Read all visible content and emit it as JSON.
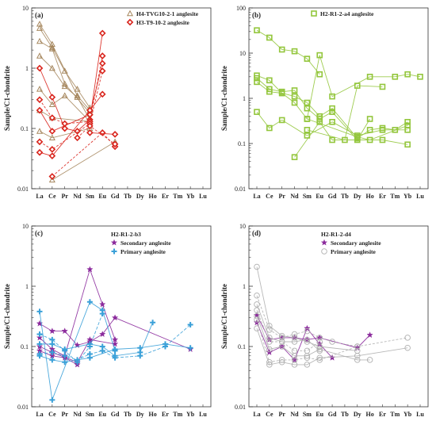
{
  "chart_data": [
    {
      "type": "line",
      "panel_label": "(a)",
      "ylabel": "Sample/C1-chondrite",
      "ylim": [
        0.01,
        10
      ],
      "yscale": "log",
      "y_ticks": [
        "0.01",
        "0.1",
        "1",
        "10"
      ],
      "categories": [
        "La",
        "Ce",
        "Pr",
        "Nd",
        "Sm",
        "Eu",
        "Gd",
        "Tb",
        "Dy",
        "Ho",
        "Er",
        "Tm",
        "Yb",
        "Lu"
      ],
      "legend_title": "",
      "legend": [
        "H4-TVG10-2-1 anglesite",
        "H3-T9-10-2 anglesite"
      ],
      "colors": [
        "#a6875e",
        "#d9251d"
      ],
      "series": [
        {
          "name": "H4-TVG10-2-1 anglesite",
          "marker": "triangle",
          "color": "#a6875e",
          "lines": [
            {
              "La": 5.4,
              "Ce": 2.5,
              "Nd": 0.35,
              "Sm": 0.2
            },
            {
              "La": 4.6,
              "Ce": 2.2,
              "Pr": 0.9,
              "Nd": 0.45,
              "Sm": 0.22
            },
            {
              "La": 2.8,
              "Ce": 2.1,
              "Pr": 0.55,
              "Sm": 0.18
            },
            {
              "La": 1.6,
              "Ce": 1.0,
              "Pr": 0.5,
              "Nd": 0.33,
              "Sm": 0.14
            },
            {
              "La": 0.45,
              "Ce": 0.25,
              "Pr": 0.35,
              "Sm": 0.13
            },
            {
              "La": 0.2,
              "Ce": 0.15,
              "Sm": 0.13
            },
            {
              "La": 0.09,
              "Ce": 0.07,
              "Sm": 0.1
            },
            {
              "Ce": 0.014,
              "Gd": 0.06
            }
          ]
        },
        {
          "name": "H3-T9-10-2 anglesite",
          "marker": "diamond",
          "color": "#d9251d",
          "lines": [
            {
              "La": 1.0,
              "Ce": 0.33,
              "Pr": 0.1,
              "Nd": 0.09,
              "Sm": 0.14,
              "Eu": 3.8
            },
            {
              "La": 0.3,
              "Ce": 0.15,
              "Pr": 0.12,
              "Sm": 0.13,
              "Eu": 1.6
            },
            {
              "La": 0.2,
              "Ce": 0.09,
              "Sm": 0.17,
              "Eu": 1.2
            },
            {
              "La": 0.06,
              "Ce": 0.045,
              "Sm": 0.12,
              "Eu": 0.9
            },
            {
              "La": 0.04,
              "Ce": 0.035,
              "Sm": 0.2,
              "Eu": 0.37
            },
            {
              "Ce": 0.016,
              "Eu": 0.085,
              "Gd": 0.05
            },
            {
              "Sm": 0.085,
              "Gd": 0.08
            },
            {
              "Nd": 0.07,
              "Sm": 0.11,
              "Gd": 0.055
            }
          ]
        }
      ]
    },
    {
      "type": "line",
      "panel_label": "(b)",
      "ylabel": "Sample/C1-chondrite",
      "ylim": [
        0.01,
        100
      ],
      "yscale": "log",
      "y_ticks": [
        "0.01",
        "0.1",
        "1",
        "10",
        "100"
      ],
      "categories": [
        "La",
        "Ce",
        "Pr",
        "Nd",
        "Sm",
        "Eu",
        "Gd",
        "Tb",
        "Dy",
        "Ho",
        "Er",
        "Tm",
        "Yb",
        "Lu"
      ],
      "legend_title": "",
      "legend": [
        "H2-R1-2-a4 anglesite"
      ],
      "colors": [
        "#93c63c"
      ],
      "series": [
        {
          "name": "H2-R1-2-a4 anglesite",
          "marker": "square",
          "color": "#93c63c",
          "lines": [
            {
              "La": 32,
              "Ce": 22,
              "Pr": 12,
              "Nd": 11,
              "Sm": 7.5,
              "Eu": 3.4
            },
            {
              "La": 3.2,
              "Ce": 2.5,
              "Pr": 1.3,
              "Nd": 0.8,
              "Sm": 0.35,
              "Eu": 9,
              "Gd": 1.1,
              "Ho": 3.0,
              "Tm": 3.0,
              "Yb": 3.4,
              "Lu": 3.0
            },
            {
              "La": 2.8,
              "Ce": 1.6,
              "Pr": 1.4,
              "Nd": 1.5,
              "Sm": 0.6,
              "Eu": 0.35,
              "Gd": 0.5,
              "Dy": 0.12,
              "Ho": 0.35
            },
            {
              "La": 2.3,
              "Ce": 1.4,
              "Pr": 1.3,
              "Nd": 1.1,
              "Sm": 0.8,
              "Eu": 0.4,
              "Gd": 0.6,
              "Dy": 0.13,
              "Ho": 0.2,
              "Er": 0.22,
              "Tm": 0.2,
              "Yb": 0.3
            },
            {
              "La": 0.5,
              "Ce": 0.22,
              "Pr": 0.33,
              "Sm": 0.15,
              "Gd": 0.3,
              "Dy": 0.15,
              "Er": 0.2,
              "Yb": 0.2
            },
            {
              "Nd": 0.05,
              "Eu": 0.3,
              "Gd": 0.12,
              "Er": 0.12,
              "Yb": 0.095
            },
            {
              "Sm": 0.35,
              "Dy": 0.14,
              "Ho": 0.12,
              "Yb": 0.25
            },
            {
              "Sm": 0.2,
              "Tb": 0.12,
              "Dy": 1.9,
              "Er": 1.8
            }
          ]
        }
      ]
    },
    {
      "type": "line",
      "panel_label": "(c)",
      "ylabel": "Sample/C1-chondrite",
      "ylim": [
        0.01,
        10
      ],
      "yscale": "log",
      "y_ticks": [
        "0.01",
        "0.1",
        "1",
        "10"
      ],
      "categories": [
        "La",
        "Ce",
        "Pr",
        "Nd",
        "Sm",
        "Eu",
        "Gd",
        "Tb",
        "Dy",
        "Ho",
        "Er",
        "Tm",
        "Yb",
        "Lu"
      ],
      "legend_title": "H2-R1-2-b3",
      "legend": [
        "Secondary anglesite",
        "Primary anglesite"
      ],
      "colors": [
        "#8b2a9c",
        "#3aa0d8"
      ],
      "series": [
        {
          "name": "Secondary anglesite",
          "marker": "star",
          "color": "#8b2a9c",
          "lines": [
            {
              "La": 0.24,
              "Ce": 0.18,
              "Pr": 0.18,
              "Nd": 0.105,
              "Sm": 0.12,
              "Eu": 0.16,
              "Gd": 0.3,
              "Yb": 0.09
            },
            {
              "La": 0.14,
              "Ce": 0.09,
              "Pr": 0.07,
              "Sm": 1.9,
              "Eu": 0.5,
              "Gd": 0.13
            },
            {
              "La": 0.1,
              "Ce": 0.08,
              "Nd": 0.055,
              "Sm": 0.13,
              "Gd": 0.11
            },
            {
              "La": 0.085,
              "Ce": 0.07,
              "Pr": 0.065,
              "Nd": 0.05
            }
          ]
        },
        {
          "name": "Primary anglesite",
          "marker": "plus",
          "color": "#3aa0d8",
          "lines": [
            {
              "La": 0.38,
              "Ce": 0.013,
              "Sm": 0.55,
              "Eu": 0.4,
              "Gd": 0.085
            },
            {
              "La": 0.16,
              "Ce": 0.13,
              "Pr": 0.085,
              "Nd": 0.055,
              "Sm": 0.1,
              "Eu": 0.35
            },
            {
              "La": 0.11,
              "Ce": 0.11,
              "Pr": 0.09,
              "Sm": 0.11,
              "Eu": 0.1,
              "Gd": 0.07,
              "Dy": 0.08,
              "Ho": 0.25
            },
            {
              "La": 0.075,
              "Ce": 0.08,
              "Pr": 0.07,
              "Nd": 0.06,
              "Sm": 0.075,
              "Eu": 0.085,
              "Gd": 0.065,
              "Dy": 0.07,
              "Er": 0.1,
              "Yb": 0.23
            },
            {
              "La": 0.07,
              "Ce": 0.06,
              "Pr": 0.055,
              "Sm": 0.065,
              "Gd": 0.09,
              "Dy": 0.095,
              "Er": 0.11,
              "Yb": 0.095
            }
          ]
        }
      ]
    },
    {
      "type": "line",
      "panel_label": "(d)",
      "ylabel": "Sample/C1-chondrite",
      "ylim": [
        0.01,
        10
      ],
      "yscale": "log",
      "y_ticks": [
        "0.01",
        "0.1",
        "1",
        "10"
      ],
      "categories": [
        "La",
        "Ce",
        "Pr",
        "Nd",
        "Sm",
        "Eu",
        "Gd",
        "Tb",
        "Dy",
        "Ho",
        "Er",
        "Tm",
        "Yb",
        "Lu"
      ],
      "legend_title": "H2-R1-2-d4",
      "legend": [
        "Secondary anglesite",
        "Primary anglesite"
      ],
      "colors": [
        "#8b2a9c",
        "#b0b0b0"
      ],
      "series": [
        {
          "name": "Secondary anglesite",
          "marker": "star",
          "color": "#8b2a9c",
          "lines": [
            {
              "La": 0.33,
              "Ce": 0.13,
              "Pr": 0.14,
              "Nd": 0.14,
              "Sm": 0.13,
              "Eu": 0.14,
              "Dy": 0.095,
              "Ho": 0.155
            },
            {
              "La": 0.25,
              "Ce": 0.08,
              "Pr": 0.1,
              "Nd": 0.06,
              "Sm": 0.2,
              "Eu": 0.11,
              "Gd": 0.065
            }
          ]
        },
        {
          "name": "Primary anglesite",
          "marker": "circle",
          "color": "#b0b0b0",
          "lines": [
            {
              "La": 2.1,
              "Ce": 0.22,
              "Pr": 0.15,
              "Nd": 0.14,
              "Sm": 0.12,
              "Eu": 0.1,
              "Dy": 0.085
            },
            {
              "La": 0.7,
              "Ce": 0.19,
              "Pr": 0.14,
              "Nd": 0.16,
              "Sm": 0.18,
              "Eu": 0.14,
              "Gd": 0.12,
              "Dy": 0.1
            },
            {
              "La": 0.5,
              "Ce": 0.14,
              "Pr": 0.12,
              "Nd": 0.12,
              "Sm": 0.13,
              "Eu": 0.085
            },
            {
              "La": 0.4,
              "Ce": 0.12,
              "Pr": 0.12,
              "Nd": 0.085,
              "Sm": 0.085,
              "Eu": 0.12
            },
            {
              "La": 0.32,
              "Ce": 0.09,
              "Pr": 0.1,
              "Nd": 0.07,
              "Sm": 0.07,
              "Eu": 0.09,
              "Dy": 0.06,
              "Ho": 0.06
            },
            {
              "La": 0.28,
              "Ce": 0.055,
              "Pr": 0.06,
              "Nd": 0.06,
              "Sm": 0.065,
              "Eu": 0.06,
              "Dy": 0.1,
              "Yb": 0.14
            },
            {
              "La": 0.2,
              "Ce": 0.05,
              "Pr": 0.055,
              "Nd": 0.05,
              "Sm": 0.05,
              "Eu": 0.065,
              "Dy": 0.07,
              "Yb": 0.095
            }
          ]
        }
      ]
    }
  ]
}
